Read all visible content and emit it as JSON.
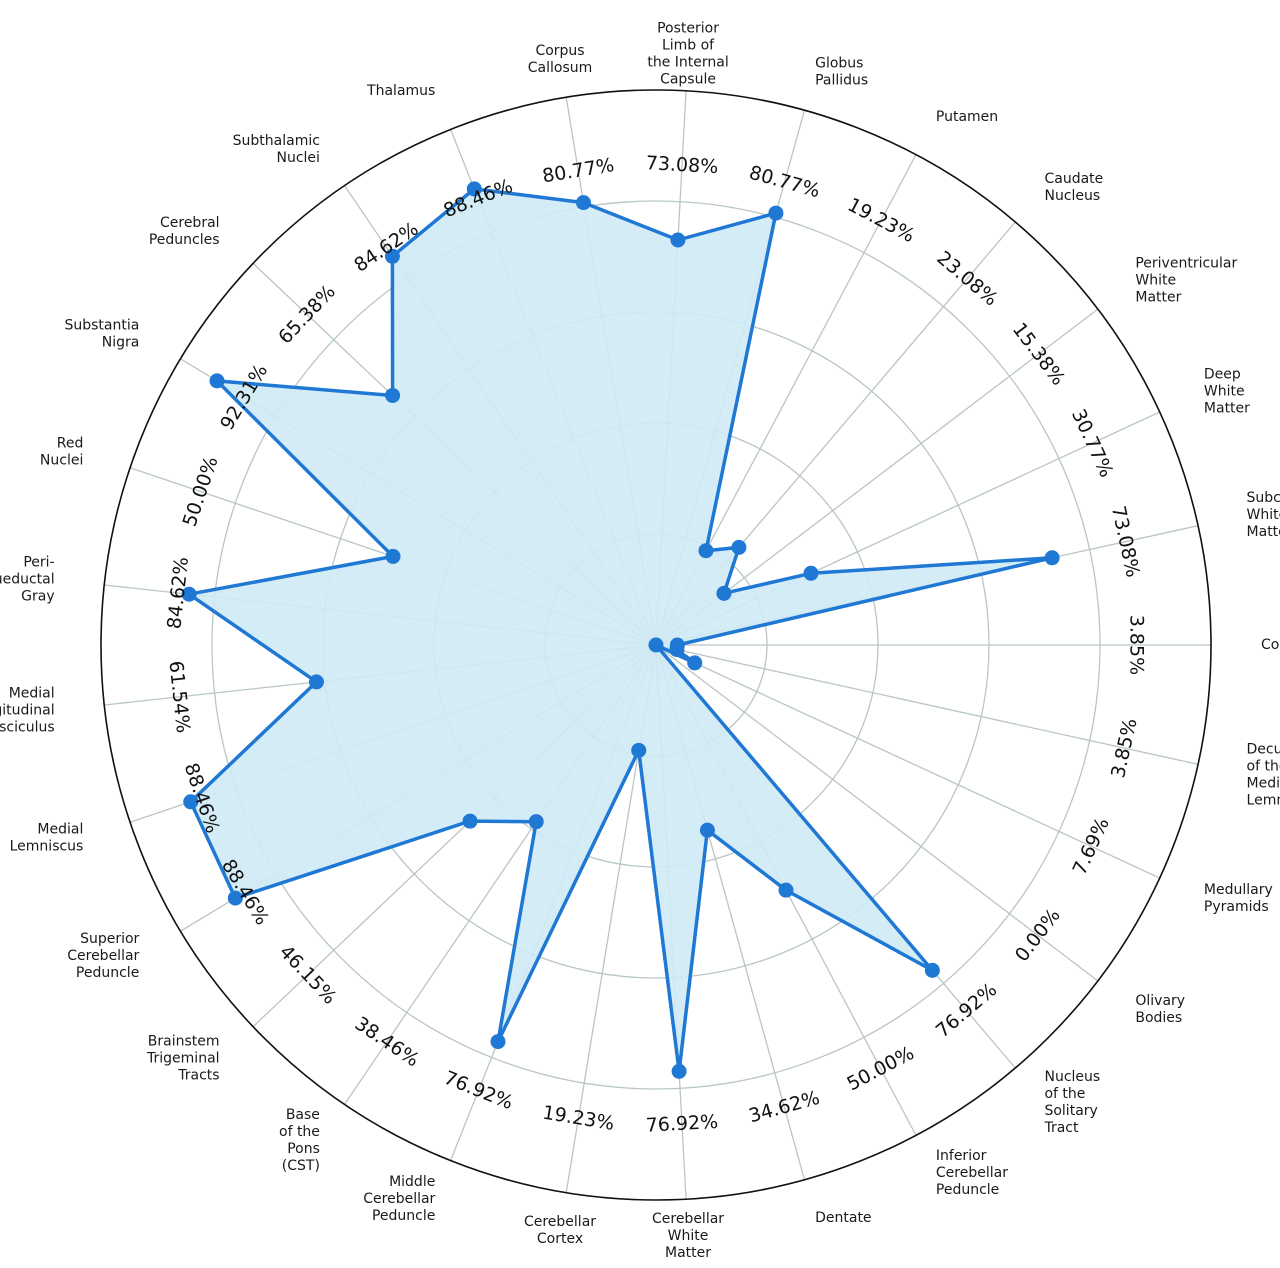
{
  "chart_data": {
    "type": "radar",
    "title": "",
    "rlim": [
      0,
      100
    ],
    "grid": true,
    "colors": {
      "line": "#1f78d4",
      "fill": "#cfeaf5",
      "grid": "#b9c6c6",
      "frame": "#111111"
    },
    "categories": [
      [
        "Cortex"
      ],
      [
        "Subcortical",
        "White",
        "Matter"
      ],
      [
        "Deep",
        "White",
        "Matter"
      ],
      [
        "Periventricular",
        "White",
        "Matter"
      ],
      [
        "Caudate",
        "Nucleus"
      ],
      [
        "Putamen"
      ],
      [
        "Globus",
        "Pallidus"
      ],
      [
        "Posterior",
        "Limb of",
        "the Internal",
        "Capsule"
      ],
      [
        "Corpus",
        "Callosum"
      ],
      [
        "Thalamus"
      ],
      [
        "Subthalamic",
        "Nuclei"
      ],
      [
        "Cerebral",
        "Peduncles"
      ],
      [
        "Substantia",
        "Nigra"
      ],
      [
        "Red",
        "Nuclei"
      ],
      [
        "Peri-",
        "aqueductal",
        "Gray"
      ],
      [
        "Medial",
        "Longitudinal",
        "Fasciculus"
      ],
      [
        "Medial",
        "Lemniscus"
      ],
      [
        "Superior",
        "Cerebellar",
        "Peduncle"
      ],
      [
        "Brainstem",
        "Trigeminal",
        "Tracts"
      ],
      [
        "Base",
        "of the",
        "Pons",
        "(CST)"
      ],
      [
        "Middle",
        "Cerebellar",
        "Peduncle"
      ],
      [
        "Cerebellar",
        "Cortex"
      ],
      [
        "Cerebellar",
        "White",
        "Matter"
      ],
      [
        "Dentate"
      ],
      [
        "Inferior",
        "Cerebellar",
        "Peduncle"
      ],
      [
        "Nucleus",
        "of the",
        "Solitary",
        "Tract"
      ],
      [
        "Olivary",
        "Bodies"
      ],
      [
        "Medullary",
        "Pyramids"
      ],
      [
        "Decussation",
        "of the",
        "Medial",
        "Lemniscus"
      ]
    ],
    "values": [
      3.85,
      73.08,
      30.77,
      15.38,
      23.08,
      19.23,
      80.77,
      73.08,
      80.77,
      88.46,
      84.62,
      65.38,
      92.31,
      50.0,
      84.62,
      61.54,
      88.46,
      88.46,
      46.15,
      38.46,
      76.92,
      19.23,
      76.92,
      34.62,
      50.0,
      76.92,
      0.0,
      7.69,
      3.85
    ],
    "value_labels": [
      "3.85%",
      "73.08%",
      "30.77%",
      "15.38%",
      "23.08%",
      "19.23%",
      "80.77%",
      "73.08%",
      "80.77%",
      "88.46%",
      "84.62%",
      "65.38%",
      "92.31%",
      "50.00%",
      "84.62%",
      "61.54%",
      "88.46%",
      "88.46%",
      "46.15%",
      "38.46%",
      "76.92%",
      "19.23%",
      "76.92%",
      "34.62%",
      "50.00%",
      "76.92%",
      "0.00%",
      "7.69%",
      "3.85%"
    ]
  }
}
